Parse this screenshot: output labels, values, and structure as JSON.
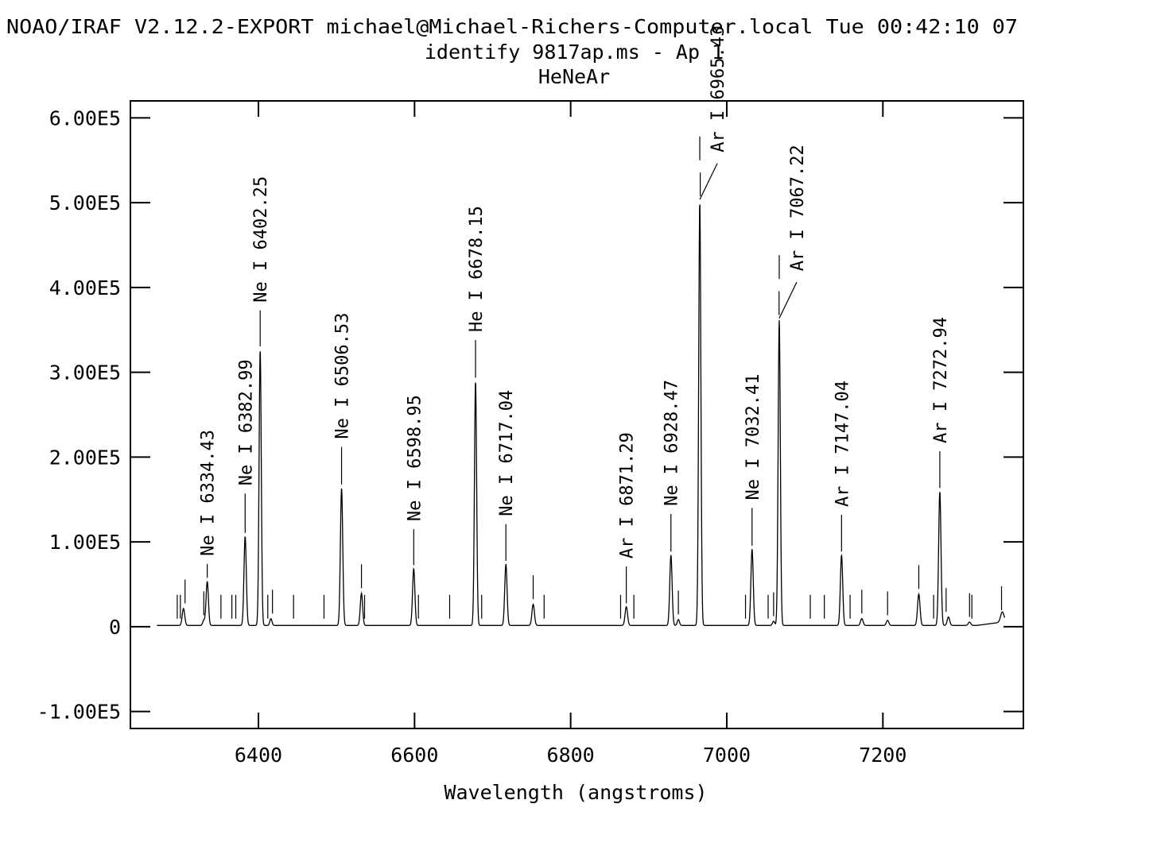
{
  "header": {
    "banner": "NOAO/IRAF V2.12.2-EXPORT michael@Michael-Richers-Computer.local Tue 00:42:10 07",
    "subtitle": "identify 9817ap.ms - Ap 1",
    "lamp": "HeNeAr"
  },
  "chart_data": {
    "type": "line",
    "title": "identify 9817ap.ms - Ap 1",
    "xlabel": "Wavelength (angstroms)",
    "ylabel": "",
    "xlim": [
      6236,
      7380
    ],
    "ylim": [
      -120000,
      620000
    ],
    "grid": false,
    "x_ticks": [
      6400,
      6600,
      6800,
      7000,
      7200
    ],
    "x_tick_labels": [
      "6400",
      "6600",
      "6800",
      "7000",
      "7200"
    ],
    "y_ticks": [
      -100000,
      0,
      100000,
      200000,
      300000,
      400000,
      500000,
      600000
    ],
    "y_tick_labels": [
      "-1.00E5",
      "0",
      "1.00E5",
      "2.00E5",
      "3.00E5",
      "4.00E5",
      "5.00E5",
      "6.00E5"
    ],
    "baseline": 1500,
    "peaks": [
      {
        "x": 6304,
        "y": 20000,
        "w": 1.6
      },
      {
        "x": 6330,
        "y": 6000,
        "w": 1.4
      },
      {
        "x": 6334.43,
        "y": 52000,
        "w": 1.5
      },
      {
        "x": 6382.99,
        "y": 105000,
        "w": 1.5
      },
      {
        "x": 6402.25,
        "y": 325000,
        "w": 1.4
      },
      {
        "x": 6416,
        "y": 8000,
        "w": 1.4
      },
      {
        "x": 6506.53,
        "y": 162000,
        "w": 1.5
      },
      {
        "x": 6532,
        "y": 38000,
        "w": 1.5
      },
      {
        "x": 6598.95,
        "y": 67000,
        "w": 1.5
      },
      {
        "x": 6678.15,
        "y": 288000,
        "w": 1.4
      },
      {
        "x": 6717.04,
        "y": 72000,
        "w": 1.5
      },
      {
        "x": 6752,
        "y": 25000,
        "w": 1.6
      },
      {
        "x": 6871.29,
        "y": 22000,
        "w": 1.6
      },
      {
        "x": 6928.47,
        "y": 83000,
        "w": 1.5
      },
      {
        "x": 6938,
        "y": 7000,
        "w": 1.4
      },
      {
        "x": 6965.43,
        "y": 500000,
        "w": 1.4
      },
      {
        "x": 7032.41,
        "y": 90000,
        "w": 1.5
      },
      {
        "x": 7060,
        "y": 5000,
        "w": 1.4
      },
      {
        "x": 7067.22,
        "y": 360000,
        "w": 1.4
      },
      {
        "x": 7147.04,
        "y": 83000,
        "w": 1.5
      },
      {
        "x": 7173,
        "y": 8000,
        "w": 1.6
      },
      {
        "x": 7206,
        "y": 6000,
        "w": 1.6
      },
      {
        "x": 7246,
        "y": 37000,
        "w": 1.6
      },
      {
        "x": 7272.94,
        "y": 158000,
        "w": 1.5
      },
      {
        "x": 7284,
        "y": 10000,
        "w": 1.6
      },
      {
        "x": 7311,
        "y": 4000,
        "w": 1.6
      },
      {
        "x": 7353,
        "y": 12000,
        "w": 2.2
      }
    ],
    "spectrum_range": [
      6270,
      7356
    ],
    "identified_lines": [
      {
        "label": "Ne I 6334.43",
        "x": 6334.43,
        "y": 52000,
        "mark_top": 74000,
        "leader": false
      },
      {
        "label": "Ne I 6382.99",
        "x": 6382.99,
        "y": 105000,
        "mark_top": 157000,
        "leader": false
      },
      {
        "label": "Ne I 6402.25",
        "x": 6402.25,
        "y": 325000,
        "mark_top": 373000,
        "leader": false
      },
      {
        "label": "Ne I 6506.53",
        "x": 6506.53,
        "y": 162000,
        "mark_top": 212000,
        "leader": false
      },
      {
        "label": "Ne I 6598.95",
        "x": 6598.95,
        "y": 67000,
        "mark_top": 115000,
        "leader": false
      },
      {
        "label": "He I 6678.15",
        "x": 6678.15,
        "y": 288000,
        "mark_top": 338000,
        "leader": false
      },
      {
        "label": "Ne I 6717.04",
        "x": 6717.04,
        "y": 72000,
        "mark_top": 121000,
        "leader": false
      },
      {
        "label": "Ar I 6871.29",
        "x": 6871.29,
        "y": 22000,
        "mark_top": 71000,
        "leader": false
      },
      {
        "label": "Ne I 6928.47",
        "x": 6928.47,
        "y": 83000,
        "mark_top": 133000,
        "leader": false
      },
      {
        "label": "Ar I 6965.43",
        "x": 6965.43,
        "y": 500000,
        "mark_top": 550000,
        "leader": true
      },
      {
        "label": "Ne I 7032.41",
        "x": 7032.41,
        "y": 90000,
        "mark_top": 140000,
        "leader": false
      },
      {
        "label": "Ar I 7067.22",
        "x": 7067.22,
        "y": 360000,
        "mark_top": 410000,
        "leader": true
      },
      {
        "label": "Ar I 7147.04",
        "x": 7147.04,
        "y": 83000,
        "mark_top": 132000,
        "leader": false
      },
      {
        "label": "Ar I 7272.94",
        "x": 7272.94,
        "y": 158000,
        "mark_top": 207000,
        "leader": false
      }
    ],
    "unidentified_features": [
      {
        "x": 6296,
        "y": 2000
      },
      {
        "x": 6300,
        "y": 2000
      },
      {
        "x": 6306,
        "y": 20000
      },
      {
        "x": 6330,
        "y": 6000
      },
      {
        "x": 6352,
        "y": 2000
      },
      {
        "x": 6366,
        "y": 2000
      },
      {
        "x": 6371,
        "y": 2000
      },
      {
        "x": 6412,
        "y": 2000
      },
      {
        "x": 6418,
        "y": 8000
      },
      {
        "x": 6445,
        "y": 2000
      },
      {
        "x": 6484,
        "y": 2000
      },
      {
        "x": 6532,
        "y": 38000
      },
      {
        "x": 6536,
        "y": 2000
      },
      {
        "x": 6605,
        "y": 2000
      },
      {
        "x": 6645,
        "y": 2000
      },
      {
        "x": 6686,
        "y": 2000
      },
      {
        "x": 6752,
        "y": 25000
      },
      {
        "x": 6766,
        "y": 2000
      },
      {
        "x": 6864,
        "y": 2000
      },
      {
        "x": 6881,
        "y": 2000
      },
      {
        "x": 6938,
        "y": 7000
      },
      {
        "x": 6966,
        "y": 500000
      },
      {
        "x": 7024,
        "y": 2000
      },
      {
        "x": 7053,
        "y": 2000
      },
      {
        "x": 7060,
        "y": 5000
      },
      {
        "x": 7067,
        "y": 360000
      },
      {
        "x": 7107,
        "y": 2000
      },
      {
        "x": 7125,
        "y": 2000
      },
      {
        "x": 7158,
        "y": 2000
      },
      {
        "x": 7173,
        "y": 8000
      },
      {
        "x": 7206,
        "y": 6000
      },
      {
        "x": 7246,
        "y": 37000
      },
      {
        "x": 7265,
        "y": 2000
      },
      {
        "x": 7281,
        "y": 10000
      },
      {
        "x": 7311,
        "y": 4000
      },
      {
        "x": 7314,
        "y": 2000
      },
      {
        "x": 7352,
        "y": 12000
      }
    ]
  }
}
